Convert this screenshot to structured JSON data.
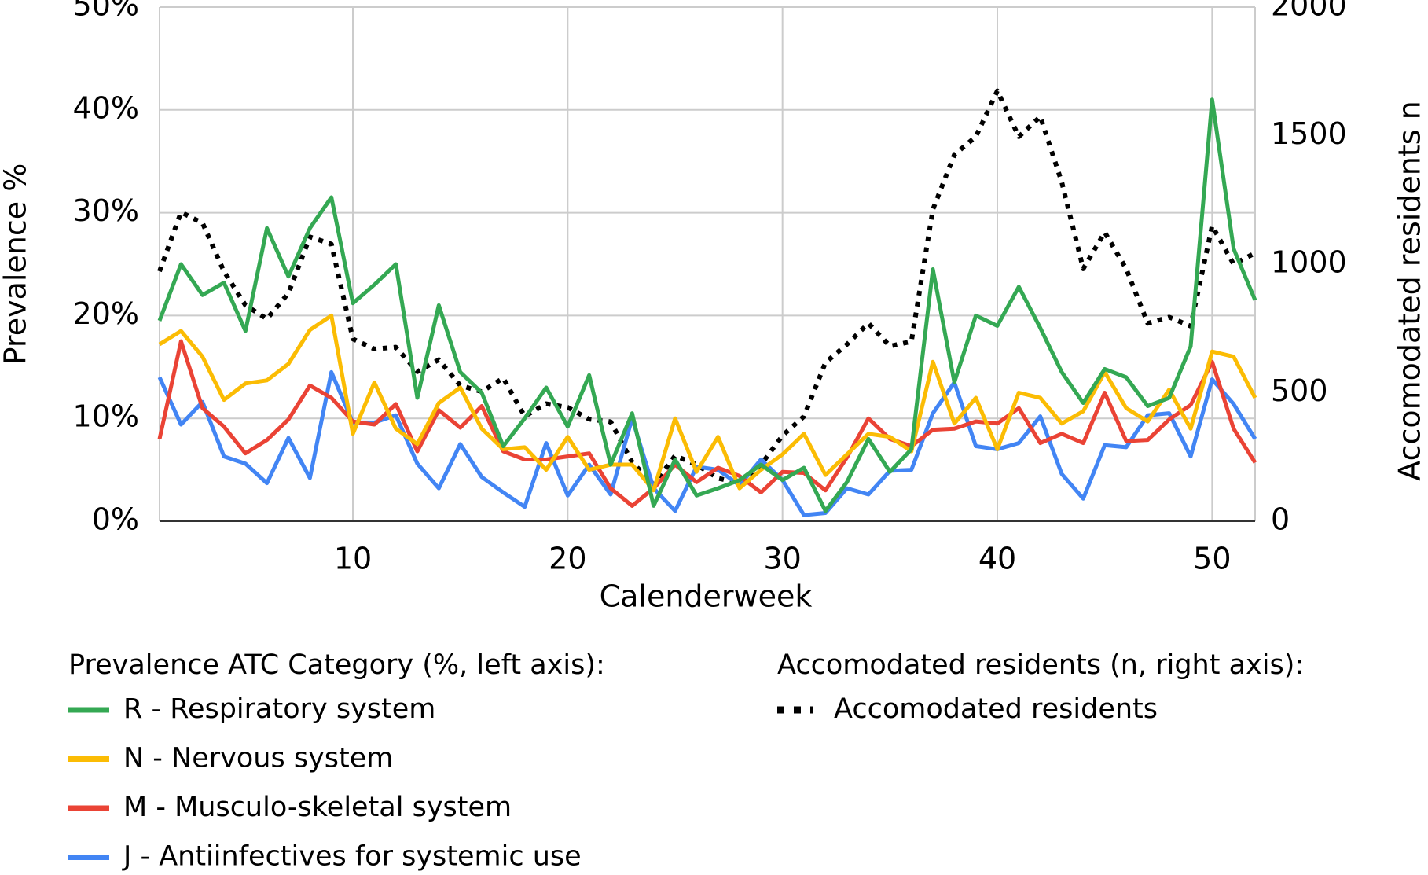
{
  "chart_data": {
    "type": "line",
    "x_label": "Calenderweek",
    "y_label": "Prevalence %",
    "y2_label": "Accomodated residents n",
    "legend_title": "Prevalence ATC Category (%, left axis):",
    "legend_title_y2": "Accomodated residents (n, right axis):",
    "x": [
      1,
      2,
      3,
      4,
      5,
      6,
      7,
      8,
      9,
      10,
      11,
      12,
      13,
      14,
      15,
      16,
      17,
      18,
      19,
      20,
      21,
      22,
      23,
      24,
      25,
      26,
      27,
      28,
      29,
      30,
      31,
      32,
      33,
      34,
      35,
      36,
      37,
      38,
      39,
      40,
      41,
      42,
      43,
      44,
      45,
      46,
      47,
      48,
      49,
      50,
      51,
      52
    ],
    "xlim": [
      1,
      52
    ],
    "xticks": [
      10,
      20,
      30,
      40,
      50
    ],
    "ylim": [
      0,
      50
    ],
    "yticks": [
      {
        "value": 0,
        "label": "0%"
      },
      {
        "value": 10,
        "label": "10%"
      },
      {
        "value": 20,
        "label": "20%"
      },
      {
        "value": 30,
        "label": "30%"
      },
      {
        "value": 40,
        "label": "40%"
      },
      {
        "value": 50,
        "label": "50%"
      }
    ],
    "y2lim": [
      0,
      2000
    ],
    "y2ticks": [
      0,
      500,
      1000,
      1500,
      2000
    ],
    "grid": true,
    "series": [
      {
        "name": "R - Respiratory system",
        "color": "#34a853",
        "values": [
          19.5,
          25,
          22,
          23.2,
          18.5,
          28.5,
          23.8,
          28.5,
          31.5,
          21.2,
          23,
          25,
          12,
          21,
          14.5,
          12.5,
          7.3,
          10,
          13,
          9.2,
          14.2,
          5.5,
          10.5,
          1.5,
          6,
          2.5,
          3.2,
          4,
          5.5,
          4,
          5.2,
          1,
          3.8,
          8,
          4.8,
          7,
          24.5,
          13.5,
          20,
          19,
          22.8,
          18.8,
          14.5,
          11.5,
          14.8,
          14,
          11.2,
          12,
          17,
          41,
          26.5,
          21.5
        ]
      },
      {
        "name": "N - Nervous system",
        "color": "#fbbc04",
        "values": [
          17.2,
          18.5,
          16,
          11.8,
          13.4,
          13.7,
          15.3,
          18.6,
          20,
          8.5,
          13.5,
          9,
          7.5,
          11.5,
          13,
          9,
          7,
          7.2,
          5,
          8.2,
          5,
          5.5,
          5.5,
          3,
          10,
          4.8,
          8.2,
          3.2,
          5,
          6.5,
          8.5,
          4.5,
          6.5,
          8.5,
          8.2,
          6.8,
          15.5,
          9.5,
          12,
          7,
          12.5,
          12,
          9.5,
          10.7,
          14.5,
          11,
          9.7,
          12.8,
          9,
          16.5,
          16,
          12
        ]
      },
      {
        "name": "M - Musculo-skeletal system",
        "color": "#ea4335",
        "values": [
          8,
          17.5,
          11,
          9.2,
          6.6,
          7.9,
          9.9,
          13.2,
          12,
          9.7,
          9.4,
          11.4,
          6.8,
          10.8,
          9.1,
          11.2,
          6.8,
          6,
          6,
          6.3,
          6.6,
          3.2,
          1.5,
          3.2,
          5.5,
          3.8,
          5.2,
          4.4,
          2.8,
          4.8,
          4.7,
          3,
          6.2,
          10,
          8,
          7.3,
          8.9,
          9,
          9.7,
          9.5,
          11,
          7.6,
          8.5,
          7.6,
          12.5,
          7.8,
          7.9,
          9.9,
          11.3,
          15.5,
          9,
          5.7
        ]
      },
      {
        "name": "J - Antiinfectives for systemic use",
        "color": "#4285f4",
        "values": [
          14,
          9.4,
          11.6,
          6.3,
          5.6,
          3.7,
          8.1,
          4.2,
          14.5,
          9.6,
          9.6,
          10.3,
          5.6,
          3.2,
          7.5,
          4.3,
          2.8,
          1.4,
          7.6,
          2.5,
          5.5,
          2.6,
          10,
          3.2,
          1,
          5.3,
          5,
          3.5,
          6,
          4,
          0.6,
          0.8,
          3.2,
          2.6,
          4.9,
          5,
          10.5,
          13.5,
          7.3,
          7,
          7.6,
          10.2,
          4.6,
          2.2,
          7.4,
          7.2,
          10.3,
          10.5,
          6.3,
          13.8,
          11.4,
          8
        ]
      },
      {
        "name": "Accomodated residents",
        "color": "#000000",
        "axis": "y2",
        "dash": "dotted",
        "values": [
          972,
          1202,
          1160,
          972,
          840,
          787,
          887,
          1106,
          1078,
          709,
          670,
          677,
          582,
          628,
          528,
          504,
          557,
          408,
          457,
          443,
          397,
          387,
          230,
          142,
          255,
          220,
          167,
          149,
          220,
          333,
          408,
          617,
          688,
          770,
          681,
          699,
          1213,
          1426,
          1496,
          1674,
          1496,
          1574,
          1319,
          982,
          1124,
          982,
          770,
          794,
          759,
          1149,
          1000,
          1043
        ]
      }
    ]
  }
}
